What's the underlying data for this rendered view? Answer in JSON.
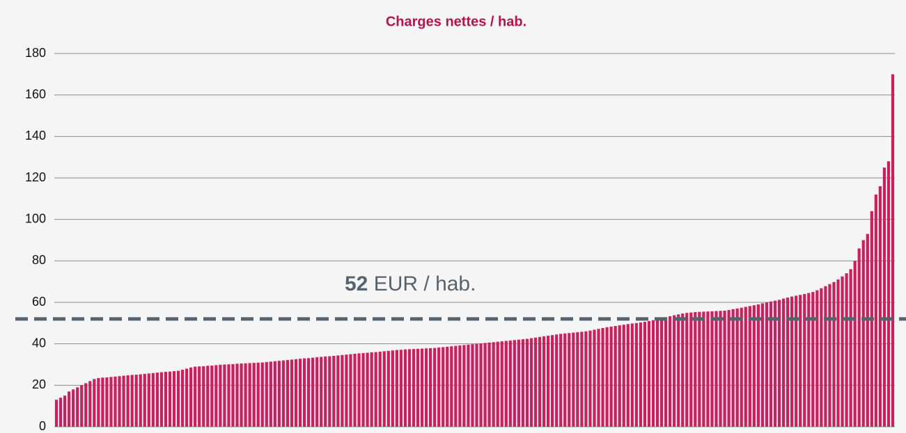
{
  "chart_data": {
    "type": "bar",
    "title": "Charges nettes / hab.",
    "values": [
      13,
      14,
      15,
      17,
      18,
      19,
      20,
      21,
      22,
      23,
      23.5,
      23.7,
      23.8,
      24,
      24.2,
      24.4,
      24.6,
      24.8,
      25,
      25.1,
      25.3,
      25.5,
      25.7,
      25.9,
      26.1,
      26.3,
      26.5,
      26.6,
      26.8,
      27,
      27.5,
      28,
      28.6,
      29,
      29.1,
      29.2,
      29.4,
      29.5,
      29.7,
      29.9,
      30,
      30.1,
      30.2,
      30.4,
      30.5,
      30.6,
      30.7,
      30.8,
      30.9,
      31,
      31.2,
      31.4,
      31.6,
      31.8,
      32,
      32.2,
      32.4,
      32.6,
      32.8,
      33,
      33.1,
      33.3,
      33.5,
      33.7,
      33.9,
      34,
      34.2,
      34.4,
      34.6,
      34.8,
      35,
      35.2,
      35.4,
      35.5,
      35.7,
      35.9,
      36,
      36.2,
      36.4,
      36.6,
      36.8,
      37,
      37.1,
      37.3,
      37.4,
      37.5,
      37.6,
      37.7,
      37.8,
      37.9,
      38,
      38.2,
      38.4,
      38.6,
      38.8,
      39,
      39.2,
      39.4,
      39.6,
      39.8,
      40,
      40.2,
      40.4,
      40.6,
      40.8,
      41,
      41.2,
      41.4,
      41.6,
      41.8,
      42,
      42.2,
      42.4,
      42.7,
      43,
      43.3,
      43.6,
      43.9,
      44.2,
      44.5,
      44.8,
      45,
      45.2,
      45.4,
      45.6,
      45.8,
      46,
      46.4,
      46.8,
      47.2,
      47.6,
      48,
      48.3,
      48.6,
      48.9,
      49.2,
      49.5,
      49.8,
      50,
      50.3,
      50.6,
      51,
      51.4,
      51.8,
      52.3,
      52.8,
      53.3,
      53.8,
      54.2,
      54.6,
      54.9,
      55.1,
      55.3,
      55.4,
      55.5,
      55.6,
      55.7,
      55.8,
      55.9,
      56,
      56.3,
      56.7,
      57,
      57.4,
      57.8,
      58.2,
      58.6,
      59,
      59.5,
      60,
      60.4,
      60.8,
      61.2,
      61.8,
      62.3,
      62.8,
      63.2,
      63.6,
      64,
      64.5,
      65,
      65.8,
      66.8,
      67.8,
      68.8,
      69.8,
      71,
      72.5,
      74,
      76,
      80,
      86,
      90,
      93,
      104,
      112,
      116,
      125,
      128,
      170
    ],
    "color": "#c8215c",
    "ylim": [
      0,
      180
    ],
    "yticks": [
      0,
      20,
      40,
      60,
      80,
      100,
      120,
      140,
      160,
      180
    ],
    "grid": true,
    "reference_line": {
      "value": 52,
      "label": "EUR / hab.",
      "color": "#56636f"
    }
  }
}
